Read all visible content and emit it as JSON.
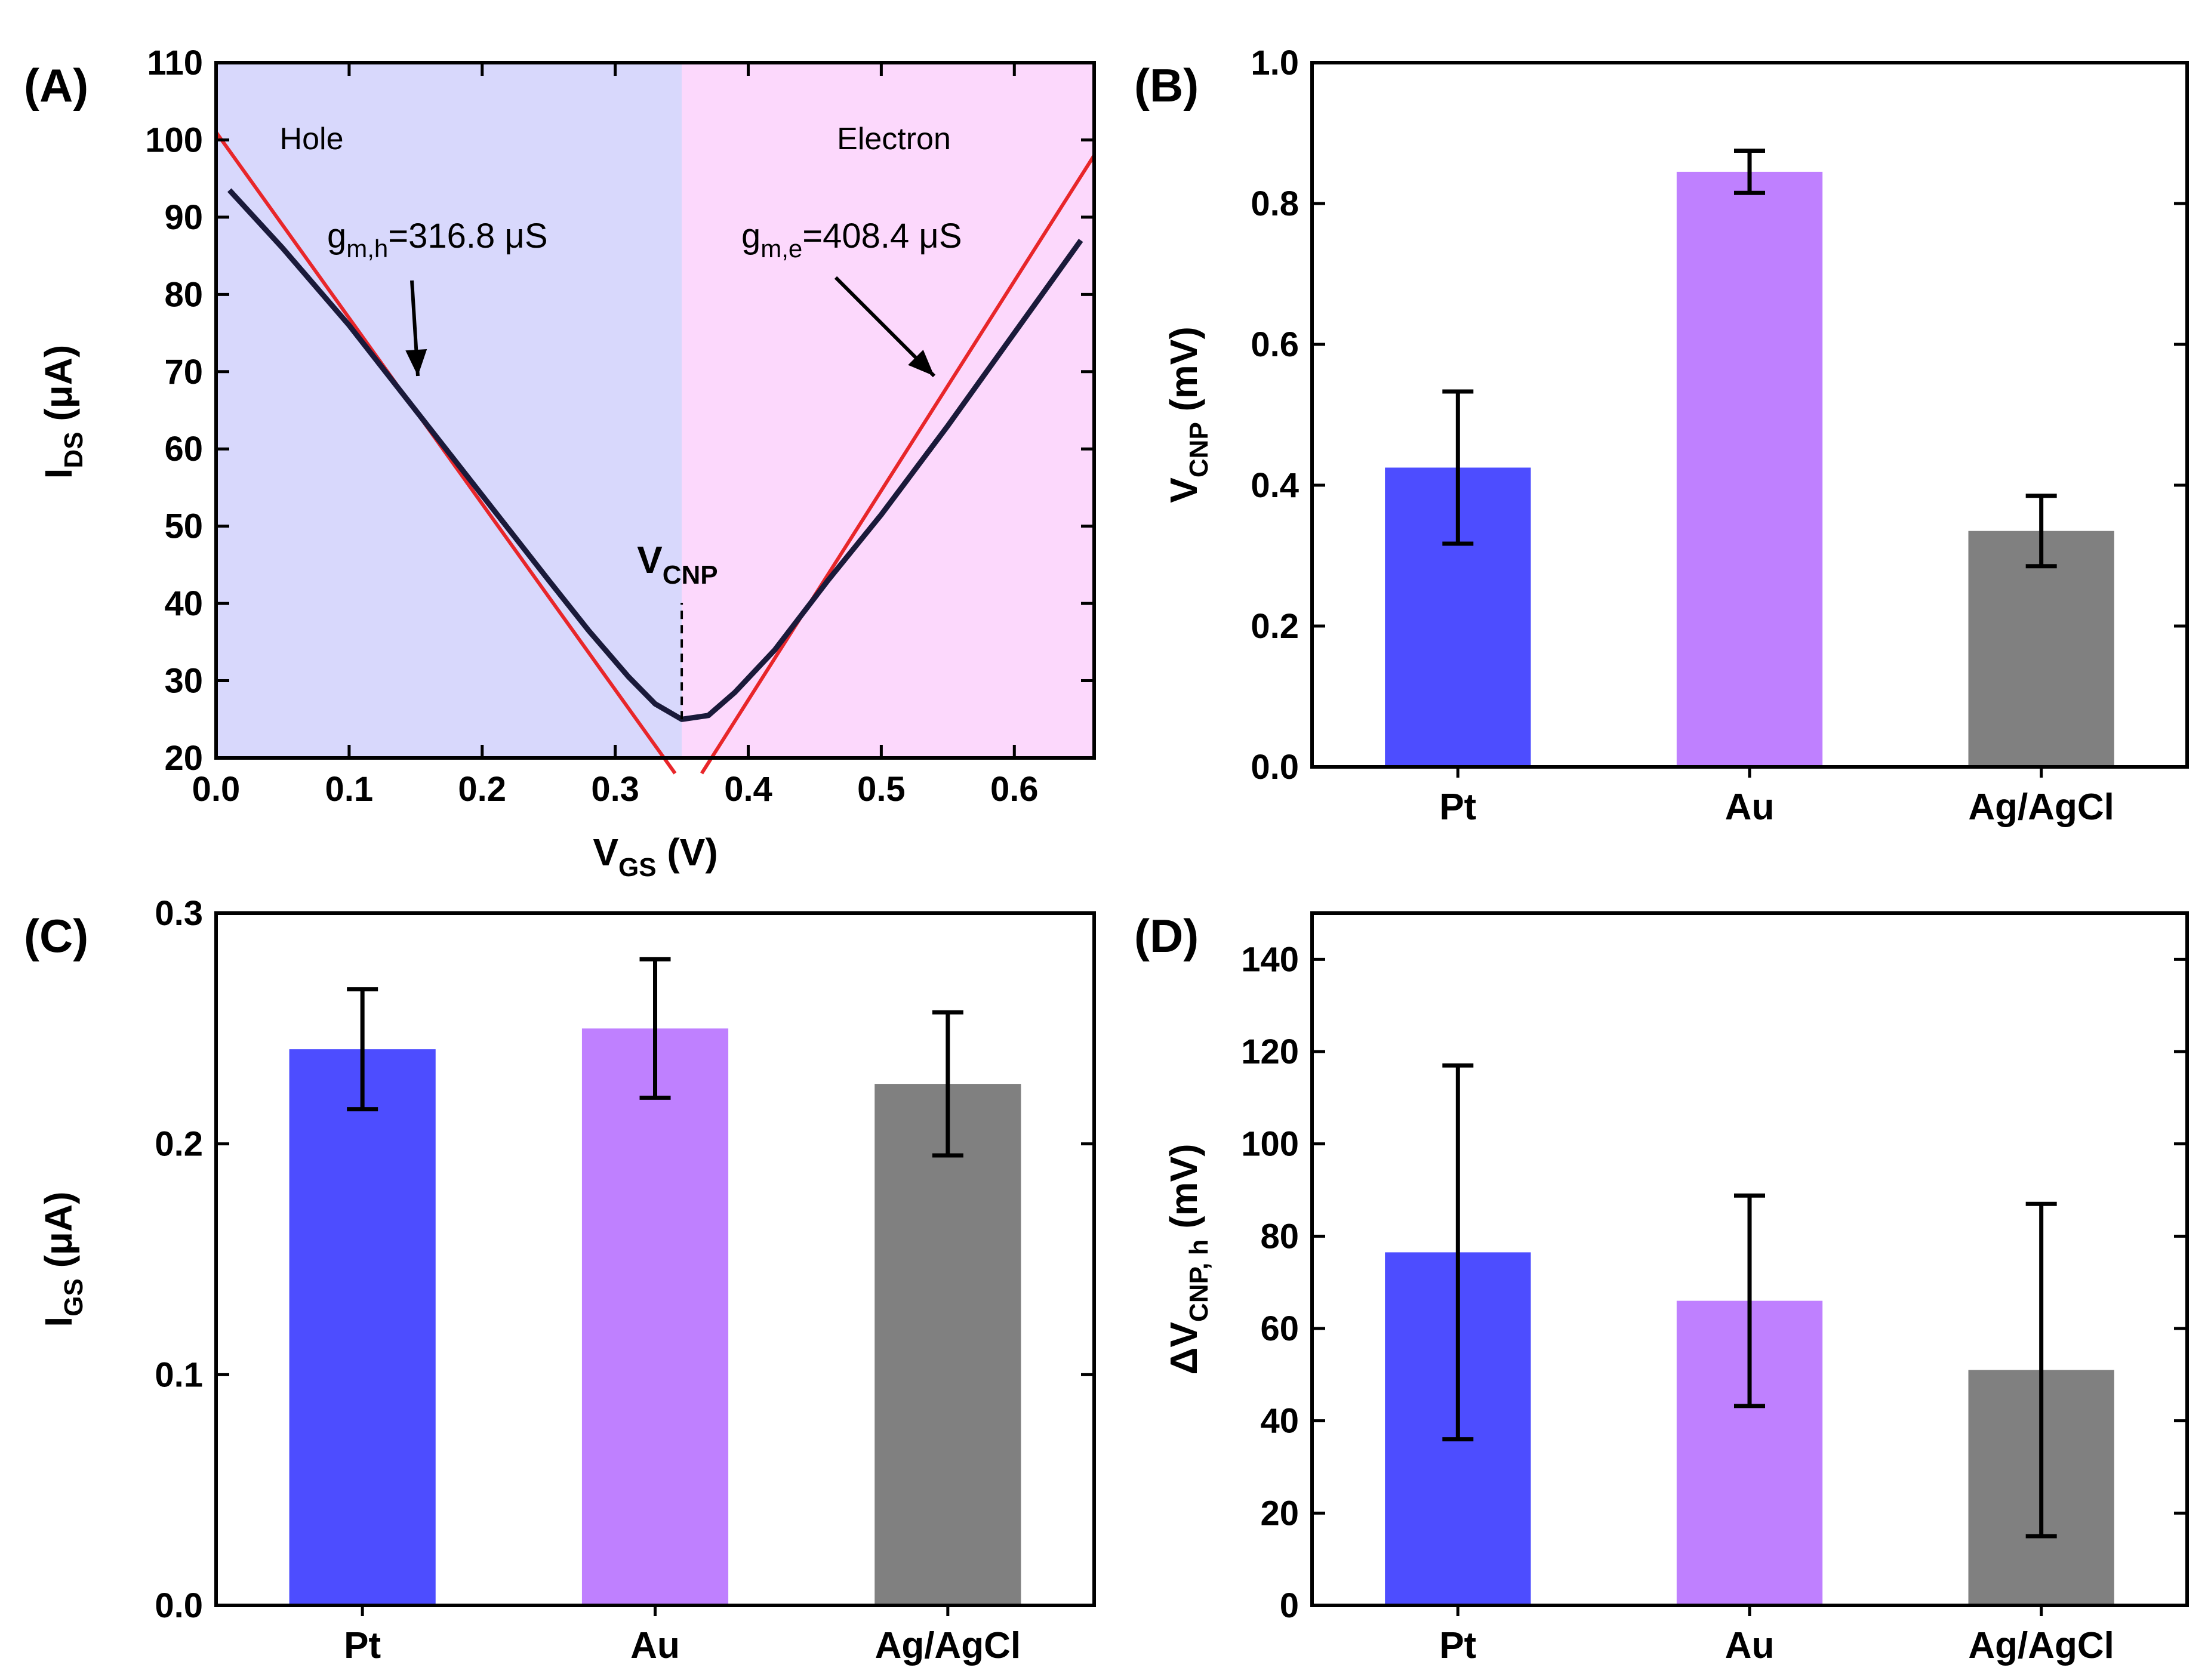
{
  "chart_data": [
    {
      "panel": "(A)",
      "type": "line",
      "xlabel": {
        "main": "V",
        "sub": "GS",
        "unit": " (V)"
      },
      "ylabel": {
        "main": "I",
        "sub": "DS",
        "unit": " (μA)"
      },
      "xlim": [
        0.0,
        0.66
      ],
      "ylim": [
        20,
        110
      ],
      "xticks": [
        "0.0",
        "0.1",
        "0.2",
        "0.3",
        "0.4",
        "0.5",
        "0.6"
      ],
      "xtick_values": [
        0.0,
        0.1,
        0.2,
        0.3,
        0.4,
        0.5,
        0.6
      ],
      "yticks": [
        "20",
        "30",
        "40",
        "50",
        "60",
        "70",
        "80",
        "90",
        "100",
        "110"
      ],
      "ytick_values": [
        20,
        30,
        40,
        50,
        60,
        70,
        80,
        90,
        100,
        110
      ],
      "regions": [
        {
          "label": "Hole",
          "from": 0.0,
          "to": 0.35,
          "color": "#d8d8fc"
        },
        {
          "label": "Electron",
          "from": 0.35,
          "to": 0.66,
          "color": "#fcd8fc"
        }
      ],
      "curve": {
        "color": "#1a1a3a",
        "x": [
          0.01,
          0.05,
          0.1,
          0.15,
          0.2,
          0.25,
          0.28,
          0.31,
          0.33,
          0.35,
          0.37,
          0.39,
          0.42,
          0.46,
          0.5,
          0.55,
          0.6,
          0.65
        ],
        "y": [
          93.5,
          86,
          76,
          65,
          54,
          43,
          36.5,
          30.5,
          27,
          25,
          25.5,
          28.5,
          34,
          43,
          51.5,
          63,
          75,
          87
        ]
      },
      "fit_lines": [
        {
          "name": "hole fit",
          "color": "#e8262a",
          "x": [
            0.0,
            0.345
          ],
          "y": [
            101,
            18
          ]
        },
        {
          "name": "electron fit",
          "color": "#e8262a",
          "x": [
            0.365,
            0.66
          ],
          "y": [
            18,
            98
          ]
        }
      ],
      "vcnp_marker": {
        "x": 0.35,
        "label_main": "V",
        "label_sub": "CNP"
      },
      "annotations": [
        {
          "main": "g",
          "sub": "m,h",
          "text": "=316.8 μS"
        },
        {
          "main": "g",
          "sub": "m,e",
          "text": "=408.4 μS"
        }
      ]
    },
    {
      "panel": "(B)",
      "type": "bar",
      "categories": [
        "Pt",
        "Au",
        "Ag/AgCl"
      ],
      "values": [
        0.425,
        0.845,
        0.335
      ],
      "errors": [
        0.108,
        0.03,
        0.05
      ],
      "colors": [
        "#4d4dff",
        "#bf80ff",
        "#808080"
      ],
      "ylabel": {
        "main": "V",
        "sub": "CNP",
        "unit": " (mV)"
      },
      "ylim": [
        0.0,
        1.0
      ],
      "yticks": [
        "0.0",
        "0.2",
        "0.4",
        "0.6",
        "0.8",
        "1.0"
      ],
      "ytick_values": [
        0.0,
        0.2,
        0.4,
        0.6,
        0.8,
        1.0
      ]
    },
    {
      "panel": "(C)",
      "type": "bar",
      "categories": [
        "Pt",
        "Au",
        "Ag/AgCl"
      ],
      "values": [
        0.241,
        0.25,
        0.226
      ],
      "errors": [
        0.026,
        0.03,
        0.031
      ],
      "colors": [
        "#4d4dff",
        "#bf80ff",
        "#808080"
      ],
      "ylabel": {
        "main": "I",
        "sub": "GS",
        "unit": " (μA)"
      },
      "ylim": [
        0.0,
        0.3
      ],
      "yticks": [
        "0.0",
        "0.1",
        "0.2",
        "0.3"
      ],
      "ytick_values": [
        0.0,
        0.1,
        0.2,
        0.3
      ]
    },
    {
      "panel": "(D)",
      "type": "bar",
      "categories": [
        "Pt",
        "Au",
        "Ag/AgCl"
      ],
      "values": [
        76.5,
        66,
        51
      ],
      "errors": [
        40.5,
        22.8,
        36
      ],
      "colors": [
        "#4d4dff",
        "#bf80ff",
        "#808080"
      ],
      "ylabel": {
        "main": "ΔV",
        "sub": "CNP, h",
        "unit": " (mV)"
      },
      "ylim": [
        0,
        150
      ],
      "yticks": [
        "0",
        "20",
        "40",
        "60",
        "80",
        "100",
        "120",
        "140"
      ],
      "ytick_values": [
        0,
        20,
        40,
        60,
        80,
        100,
        120,
        140
      ]
    }
  ]
}
